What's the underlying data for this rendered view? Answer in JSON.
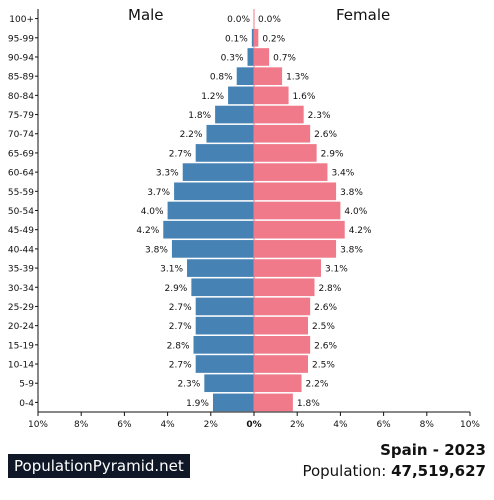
{
  "chart_data": {
    "type": "bar",
    "orientation": "horizontal-pyramid",
    "categories": [
      "100+",
      "95-99",
      "90-94",
      "85-89",
      "80-84",
      "75-79",
      "70-74",
      "65-69",
      "60-64",
      "55-59",
      "50-54",
      "45-49",
      "40-44",
      "35-39",
      "30-34",
      "25-29",
      "20-24",
      "15-19",
      "10-14",
      "5-9",
      "0-4"
    ],
    "series": [
      {
        "name": "Male",
        "color": "#4682b4",
        "values": [
          0.0,
          0.1,
          0.3,
          0.8,
          1.2,
          1.8,
          2.2,
          2.7,
          3.3,
          3.7,
          4.0,
          4.2,
          3.8,
          3.1,
          2.9,
          2.7,
          2.7,
          2.8,
          2.7,
          2.3,
          1.9
        ]
      },
      {
        "name": "Female",
        "color": "#f07a8a",
        "values": [
          0.0,
          0.2,
          0.7,
          1.3,
          1.6,
          2.3,
          2.6,
          2.9,
          3.4,
          3.8,
          4.0,
          4.2,
          3.8,
          3.1,
          2.8,
          2.6,
          2.5,
          2.6,
          2.5,
          2.2,
          1.8
        ]
      }
    ],
    "value_labels": {
      "male": [
        "0.0%",
        "0.1%",
        "0.3%",
        "0.8%",
        "1.2%",
        "1.8%",
        "2.2%",
        "2.7%",
        "3.3%",
        "3.7%",
        "4.0%",
        "4.2%",
        "3.8%",
        "3.1%",
        "2.9%",
        "2.7%",
        "2.7%",
        "2.8%",
        "2.7%",
        "2.3%",
        "1.9%"
      ],
      "female": [
        "0.0%",
        "0.2%",
        "0.7%",
        "1.3%",
        "1.6%",
        "2.3%",
        "2.6%",
        "2.9%",
        "3.4%",
        "3.8%",
        "4.0%",
        "4.2%",
        "3.8%",
        "3.1%",
        "2.8%",
        "2.6%",
        "2.5%",
        "2.6%",
        "2.5%",
        "2.2%",
        "1.8%"
      ]
    },
    "xlim": [
      -10,
      10
    ],
    "xticks": [
      -10,
      -8,
      -6,
      -4,
      -2,
      0,
      2,
      4,
      6,
      8,
      10
    ],
    "xtick_labels": [
      "10%",
      "8%",
      "6%",
      "4%",
      "2%",
      "0%",
      "2%",
      "4%",
      "6%",
      "8%",
      "10%"
    ],
    "grid": false,
    "xlabel": "",
    "ylabel": ""
  },
  "labels": {
    "male_title": "Male",
    "female_title": "Female",
    "brand": "PopulationPyramid.net",
    "country_year": "Spain - 2023",
    "population_prefix": "Population: ",
    "population_value": "47,519,627"
  }
}
